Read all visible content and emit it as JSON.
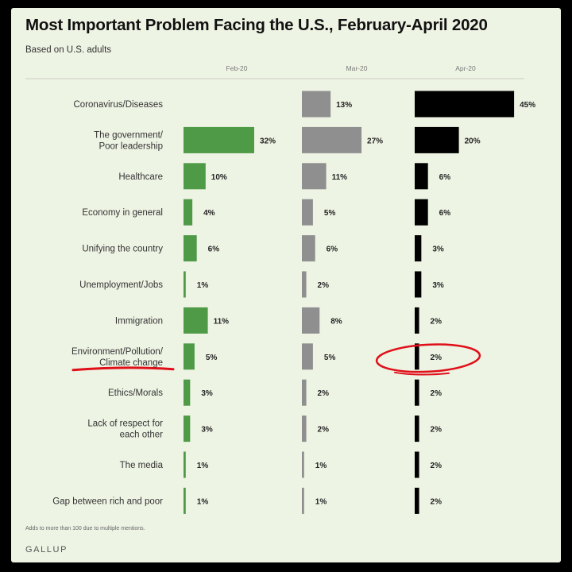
{
  "title": "Most Important Problem Facing the U.S., February-April 2020",
  "subtitle": "Based on U.S. adults",
  "footnote": "Adds to more than 100 due to multiple mentions.",
  "brand": "GALLUP",
  "colors": {
    "background": "#eef4e4",
    "feb": "#4e9a46",
    "mar": "#8f8f8f",
    "apr": "#000000",
    "annotation": "#e0101a"
  },
  "chart_data": {
    "type": "bar",
    "orientation": "horizontal",
    "title": "Most Important Problem Facing the U.S., February-April 2020",
    "subtitle": "Based on U.S. adults",
    "categories": [
      [
        "Coronavirus/Diseases"
      ],
      [
        "The government/",
        "Poor leadership"
      ],
      [
        "Healthcare"
      ],
      [
        "Economy in general"
      ],
      [
        "Unifying the country"
      ],
      [
        "Unemployment/Jobs"
      ],
      [
        "Immigration"
      ],
      [
        "Environment/Pollution/",
        "Climate change"
      ],
      [
        "Ethics/Morals"
      ],
      [
        "Lack of respect for",
        "each other"
      ],
      [
        "The media"
      ],
      [
        "Gap between rich and poor"
      ]
    ],
    "series": [
      {
        "name": "Feb-20",
        "color": "#4e9a46",
        "values": [
          null,
          32,
          10,
          4,
          6,
          1,
          11,
          5,
          3,
          3,
          1,
          1
        ]
      },
      {
        "name": "Mar-20",
        "color": "#8f8f8f",
        "values": [
          13,
          27,
          11,
          5,
          6,
          2,
          8,
          5,
          2,
          2,
          1,
          1
        ]
      },
      {
        "name": "Apr-20",
        "color": "#000000",
        "values": [
          45,
          20,
          6,
          6,
          3,
          3,
          2,
          2,
          2,
          2,
          2,
          2
        ]
      }
    ],
    "value_suffix": "%",
    "legend": "column headers at top",
    "annotations": [
      {
        "type": "underline",
        "target_category": 7,
        "color": "#e0101a"
      },
      {
        "type": "circle",
        "target_category": 7,
        "target_series": 2,
        "color": "#e0101a"
      }
    ]
  }
}
